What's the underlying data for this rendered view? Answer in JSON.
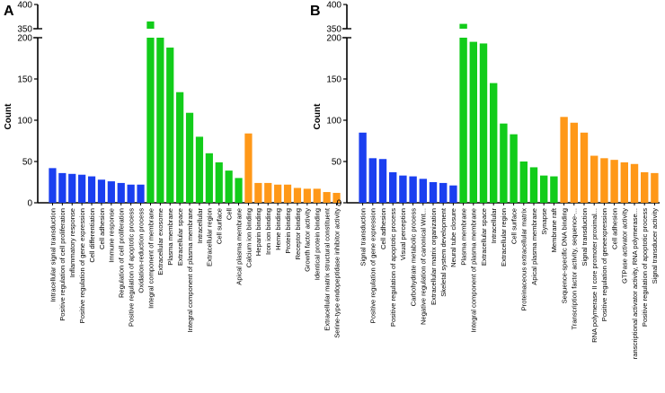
{
  "chart_data": [
    {
      "type": "bar",
      "panel_label": "A",
      "ylabel": "Count",
      "y_axis": {
        "lower_segment": [
          0,
          200
        ],
        "upper_segment": [
          350,
          400
        ],
        "ticks": [
          0,
          50,
          100,
          150,
          200,
          350,
          400
        ]
      },
      "categories": [
        "Intracellular signal transduction",
        "Positive regulation of cell proliferation",
        "Inflammatory response",
        "Positive regulation of gene expression",
        "Cell differentiation",
        "Cell adhesion",
        "Immune response",
        "Regulation of cell proliferation",
        "Positive regulation of apoptotic process",
        "Oxidation-reduction process",
        "Integral component of membrane",
        "Extracellular exosome",
        "Plasma membrane",
        "Extracellular space",
        "Integral component of plasma membrane",
        "Intracellular",
        "Extracellular region",
        "Cell surface",
        "Cell",
        "Apical plasma membrane",
        "Calcium ion binding",
        "Heparin binding",
        "Iron ion binding",
        "Heme binding",
        "Protein binding",
        "Receptor binding",
        "Growth factor activity",
        "Identical protein binding",
        "Extracellular matrix structural constituent",
        "Serine-type endopeptidase inhibitor activity"
      ],
      "values": [
        42,
        36,
        35,
        34,
        32,
        28,
        26,
        24,
        22,
        22,
        365,
        222,
        188,
        134,
        109,
        80,
        60,
        49,
        39,
        30,
        84,
        24,
        24,
        22,
        22,
        18,
        17,
        17,
        13,
        12
      ],
      "groups": [
        "bp",
        "bp",
        "bp",
        "bp",
        "bp",
        "bp",
        "bp",
        "bp",
        "bp",
        "bp",
        "cc",
        "cc",
        "cc",
        "cc",
        "cc",
        "cc",
        "cc",
        "cc",
        "cc",
        "cc",
        "mf",
        "mf",
        "mf",
        "mf",
        "mf",
        "mf",
        "mf",
        "mf",
        "mf",
        "mf"
      ]
    },
    {
      "type": "bar",
      "panel_label": "B",
      "ylabel": "Count",
      "y_axis": {
        "lower_segment": [
          0,
          200
        ],
        "upper_segment": [
          350,
          400
        ],
        "ticks": [
          0,
          50,
          100,
          150,
          200,
          350,
          400
        ]
      },
      "categories": [
        "Signal transduction",
        "Positive regulation of gene expression",
        "Cell adhesion",
        "Positive regulation of apoptotic process",
        "Visual perception",
        "Carbohydrate metabolic process",
        "Negative regulation of canonical Wnt...",
        "Extracellular matrix organization",
        "Skeletal system development",
        "Neural tube closure",
        "Plasma membrane",
        "Integral component of plasma membrane",
        "Extracellular space",
        "Intracellular",
        "Extracellular region",
        "Cell surface",
        "Proteinaceous extracellular matrix",
        "Apical plasma membrane",
        "Synapse",
        "Membrane raft",
        "Sequence-specific DNA binding",
        "Transcription factor activity, sequence-...",
        "Signal transduction",
        "RNA polymerase II core promoter proximal...",
        "Positive regulation of geneexpression",
        "Cell adhesion",
        "GTPase activator activity",
        "ranscriptional activator activity, RNA polymerase...",
        "Positive regulation of apoptotic process",
        "Signal transducer activity"
      ],
      "values": [
        85,
        54,
        53,
        37,
        33,
        32,
        29,
        25,
        24,
        21,
        360,
        195,
        193,
        145,
        96,
        83,
        50,
        43,
        33,
        32,
        104,
        97,
        85,
        57,
        54,
        52,
        49,
        47,
        37,
        36
      ],
      "groups": [
        "bp",
        "bp",
        "bp",
        "bp",
        "bp",
        "bp",
        "bp",
        "bp",
        "bp",
        "bp",
        "cc",
        "cc",
        "cc",
        "cc",
        "cc",
        "cc",
        "cc",
        "cc",
        "cc",
        "cc",
        "mf",
        "mf",
        "mf",
        "mf",
        "mf",
        "mf",
        "mf",
        "mf",
        "mf",
        "mf"
      ]
    }
  ],
  "colors": {
    "bp": "#1a3ff0",
    "cc": "#12cc1a",
    "mf": "#ff9818",
    "axis": "#000000"
  }
}
